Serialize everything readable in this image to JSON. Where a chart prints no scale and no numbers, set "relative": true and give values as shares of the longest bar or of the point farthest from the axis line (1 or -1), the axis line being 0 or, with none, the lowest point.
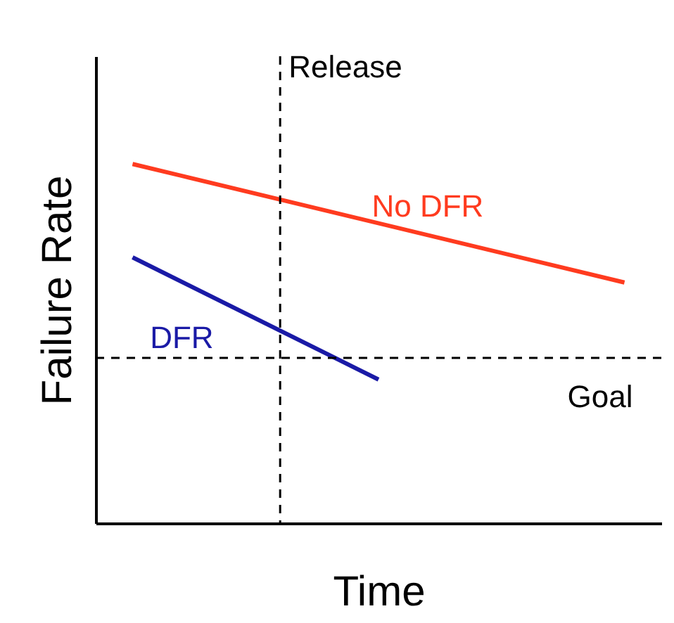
{
  "chart_data": {
    "type": "line",
    "relative": true,
    "xlabel": "Time",
    "ylabel": "Failure Rate",
    "ylim": [
      0,
      1.3
    ],
    "grid": false,
    "legend": false,
    "categories": [
      null,
      null,
      null,
      null,
      null,
      null,
      null,
      null,
      null,
      null,
      null
    ],
    "series": [
      {
        "name": "No DFR",
        "color": "#ff3b1f",
        "values": [
          1,
          null,
          null,
          null,
          null,
          null,
          null,
          null,
          null,
          null,
          0.67
        ]
      },
      {
        "name": "DFR",
        "color": "#1a1aa6",
        "values": [
          0.74,
          null,
          null,
          null,
          null,
          0.4,
          null,
          null,
          null,
          null,
          null
        ]
      }
    ],
    "annotations": [
      "Release"
    ],
    "ref_lines": [
      {
        "axis": "y",
        "value": 0.46,
        "label": "Goal",
        "line_style": "dashed"
      }
    ]
  }
}
